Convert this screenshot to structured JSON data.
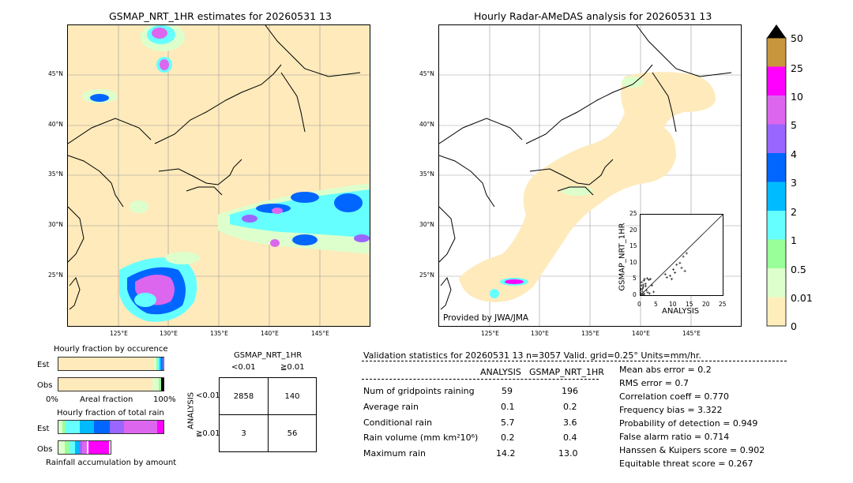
{
  "left_map": {
    "title": "GSMAP_NRT_1HR estimates for 20260531 13",
    "lat_ticks": [
      "45°N",
      "40°N",
      "35°N",
      "30°N",
      "25°N"
    ],
    "lon_ticks": [
      "125°E",
      "130°E",
      "135°E",
      "140°E",
      "145°E"
    ]
  },
  "right_map": {
    "title": "Hourly Radar-AMeDAS analysis for 20260531 13",
    "lat_ticks": [
      "45°N",
      "40°N",
      "35°N",
      "30°N",
      "25°N"
    ],
    "lon_ticks": [
      "125°E",
      "130°E",
      "135°E",
      "140°E",
      "145°E"
    ],
    "credit": "Provided by JWA/JMA"
  },
  "colorbar": {
    "labels": [
      "50",
      "25",
      "10",
      "5",
      "4",
      "3",
      "2",
      "1",
      "0.5",
      "0.01",
      "0"
    ],
    "colors": [
      "#c8963c",
      "#ff00ff",
      "#dd66ee",
      "#9966ff",
      "#0066ff",
      "#00bbff",
      "#66ffff",
      "#99ff99",
      "#ddffcc",
      "#ffeebb"
    ],
    "arrow_color": "#000000"
  },
  "scatter": {
    "xlabel": "ANALYSIS",
    "ylabel": "GSMAP_NRT_1HR",
    "ticks": [
      "0",
      "5",
      "10",
      "15",
      "20",
      "25"
    ],
    "xlim": [
      0,
      25
    ],
    "ylim": [
      0,
      25
    ],
    "points": [
      [
        0.2,
        0.5
      ],
      [
        0.5,
        1.2
      ],
      [
        0.8,
        2.5
      ],
      [
        1.0,
        4.5
      ],
      [
        1.2,
        5.0
      ],
      [
        1.5,
        3.5
      ],
      [
        2.0,
        5.2
      ],
      [
        2.5,
        4.8
      ],
      [
        0.3,
        3.0
      ],
      [
        0.6,
        2.0
      ],
      [
        1.8,
        1.5
      ],
      [
        2.2,
        0.8
      ],
      [
        0.4,
        4.0
      ],
      [
        3.0,
        5.0
      ],
      [
        1.1,
        0.4
      ],
      [
        0.9,
        3.2
      ],
      [
        8.0,
        5.5
      ],
      [
        9.0,
        6.0
      ],
      [
        10.0,
        8.0
      ],
      [
        11.0,
        9.5
      ],
      [
        12.0,
        10.0
      ],
      [
        13.0,
        12.0
      ],
      [
        14.0,
        13.0
      ],
      [
        12.5,
        8.5
      ],
      [
        13.5,
        7.5
      ],
      [
        10.5,
        7.0
      ],
      [
        7.5,
        6.5
      ],
      [
        9.5,
        5.0
      ],
      [
        2.8,
        0.5
      ],
      [
        4.0,
        1.0
      ],
      [
        0.7,
        0.2
      ],
      [
        1.6,
        2.8
      ],
      [
        3.5,
        3.0
      ],
      [
        0.1,
        1.8
      ]
    ]
  },
  "fraction_occurrence": {
    "title": "Hourly fraction by occurence",
    "est_label": "Est",
    "obs_label": "Obs",
    "axis_left": "0%",
    "axis_mid": "Areal fraction",
    "axis_right": "100%"
  },
  "fraction_total": {
    "title": "Hourly fraction of total rain",
    "est_label": "Est",
    "obs_label": "Obs",
    "footer": "Rainfall accumulation by amount"
  },
  "contingency": {
    "title": "GSMAP_NRT_1HR",
    "col_lt": "<0.01",
    "col_ge": "≧0.01",
    "row_axis": "ANALYSIS",
    "row_lt": "<0.01",
    "row_ge": "≧0.01",
    "cells": [
      "2858",
      "140",
      "3",
      "56"
    ]
  },
  "validation": {
    "header": "Validation statistics for 20260531 13  n=3057 Valid. grid=0.25°  Units=mm/hr.",
    "col_analysis": "ANALYSIS",
    "col_gsmap": "GSMAP_NRT_1HR",
    "rows": [
      {
        "label": "Num of gridpoints raining",
        "a": "59",
        "g": "196"
      },
      {
        "label": "Average rain",
        "a": "0.1",
        "g": "0.2"
      },
      {
        "label": "Conditional rain",
        "a": "5.7",
        "g": "3.6"
      },
      {
        "label": "Rain volume (mm km²10⁶)",
        "a": "0.2",
        "g": "0.4"
      },
      {
        "label": "Maximum rain",
        "a": "14.2",
        "g": "13.0"
      }
    ],
    "scores": [
      "Mean abs error =    0.2",
      "RMS error =    0.7",
      "Correlation coeff =  0.770",
      "Frequency bias =  3.322",
      "Probability of detection =  0.949",
      "False alarm ratio =  0.714",
      "Hanssen & Kuipers score =  0.902",
      "Equitable threat score =  0.267"
    ]
  }
}
